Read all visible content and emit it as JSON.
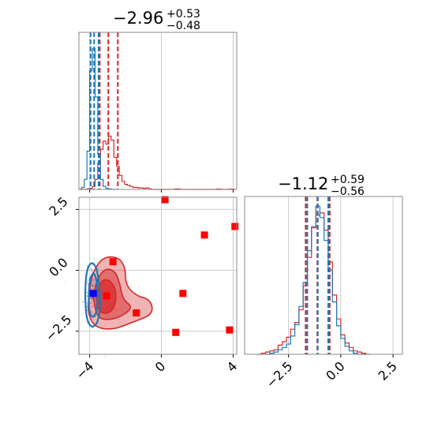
{
  "colors": {
    "series_a": "#d62728",
    "series_b": "#1f77b4",
    "grid": "#cccccc",
    "marker_red": "#ff0000",
    "marker_blue": "#0000ff"
  },
  "chart_data": [
    {
      "panel": "param1-marginal",
      "type": "histogram",
      "title": {
        "value": "−2.96",
        "upper": "+0.53",
        "lower": "−0.48"
      },
      "xlim": [
        -4.6,
        4.2
      ],
      "grid": true,
      "series": [
        {
          "color": "#d62728",
          "bins_x": [
            -4.6,
            -4.45,
            -4.3,
            -4.15,
            -4.0,
            -3.85,
            -3.7,
            -3.55,
            -3.4,
            -3.25,
            -3.1,
            -2.95,
            -2.8,
            -2.65,
            -2.5,
            -2.35,
            -2.2,
            -2.05,
            -1.9,
            -1.75,
            -1.6,
            -1.45,
            -1.3,
            -1.15,
            -1.0,
            -0.85,
            -0.7,
            -0.55,
            -0.4,
            -0.25,
            -0.1,
            0.05,
            0.2,
            0.35,
            0.5,
            0.65,
            0.8,
            0.95,
            1.1,
            1.25,
            1.4,
            1.55,
            1.7,
            1.85,
            2.0,
            2.15,
            2.3,
            2.45,
            2.6,
            2.75,
            2.9,
            3.05,
            3.2,
            3.35,
            3.5,
            3.65,
            3.8,
            3.95,
            4.1
          ],
          "counts": [
            0,
            0,
            0,
            0.5,
            1,
            3,
            10,
            26,
            40,
            48,
            45,
            53,
            49,
            32,
            23,
            14,
            8,
            5,
            4,
            3,
            2,
            2,
            1.5,
            1.5,
            1,
            1.5,
            0.5,
            0,
            0,
            0,
            0,
            0,
            0,
            0,
            0,
            0,
            0,
            0,
            0,
            0,
            0,
            0,
            0,
            0,
            0,
            0,
            0,
            0,
            0,
            0,
            0,
            0,
            0,
            0,
            0,
            0,
            0,
            0,
            0
          ],
          "quantiles": [
            -3.44,
            -2.96,
            -2.43
          ],
          "small_values": [
            [
              0.9,
              0.5
            ],
            [
              3.2,
              0.4
            ],
            [
              3.9,
              0.3
            ]
          ]
        },
        {
          "color": "#1f77b4",
          "bins_x": [
            -4.6,
            -4.45,
            -4.3,
            -4.15,
            -4.0,
            -3.85,
            -3.7,
            -3.55,
            -3.4,
            -3.25,
            -3.1,
            -2.95,
            -2.8,
            -2.65,
            -2.5
          ],
          "counts": [
            0,
            2,
            10,
            38,
            118,
            140,
            92,
            35,
            10,
            3,
            1,
            0.5,
            0,
            0
          ],
          "quantiles": [
            -3.95,
            -3.75,
            -3.5
          ]
        }
      ]
    },
    {
      "panel": "param2-marginal",
      "type": "histogram",
      "title": {
        "value": "−1.12",
        "upper": "+0.59",
        "lower": "−0.56"
      },
      "xlim": [
        -4.6,
        2.95
      ],
      "x_ticks": [
        "−2.5",
        "0.0",
        "2.5"
      ],
      "x_tick_values": [
        -2.5,
        0,
        2.5
      ],
      "grid": true,
      "series": [
        {
          "color": "#d62728",
          "edges_x": [
            -4.0,
            -3.8,
            -3.6,
            -3.4,
            -3.2,
            -3.0,
            -2.8,
            -2.6,
            -2.4,
            -2.2,
            -2.0,
            -1.8,
            -1.6,
            -1.4,
            -1.2,
            -1.0,
            -0.8,
            -0.6,
            -0.4,
            -0.2,
            0.0,
            0.2,
            0.4,
            0.6,
            0.8,
            1.0,
            1.2,
            1.4
          ],
          "counts": [
            0,
            1,
            2,
            3,
            4,
            8,
            11,
            15,
            22,
            28,
            39,
            60,
            85,
            111,
            122,
            124,
            109,
            81,
            52,
            31,
            17,
            10,
            6,
            3,
            2,
            1,
            0
          ],
          "quantiles": [
            -1.68,
            -1.12,
            -0.53
          ]
        },
        {
          "color": "#1f77b4",
          "edges_x": [
            -3.6,
            -3.4,
            -3.2,
            -3.0,
            -2.8,
            -2.6,
            -2.4,
            -2.2,
            -2.0,
            -1.8,
            -1.6,
            -1.4,
            -1.2,
            -1.0,
            -0.8,
            -0.6,
            -0.4,
            -0.2,
            0.0,
            0.2,
            0.4,
            0.6,
            0.8,
            1.0,
            1.2
          ],
          "counts": [
            0,
            1,
            2,
            4,
            6,
            9,
            16,
            26,
            42,
            63,
            91,
            112,
            130,
            120,
            100,
            74,
            46,
            25,
            14,
            7,
            3,
            1,
            0,
            0
          ],
          "quantiles": [
            -1.6,
            -1.1,
            -0.6
          ]
        }
      ]
    },
    {
      "panel": "joint",
      "type": "scatter",
      "xlim": [
        -4.6,
        4.2
      ],
      "ylim": [
        -3.45,
        3.0
      ],
      "x_ticks": [
        "−4",
        "0",
        "4"
      ],
      "x_tick_values": [
        -4,
        0,
        4
      ],
      "y_ticks": [
        "2.5",
        "0.0",
        "−2.5"
      ],
      "y_tick_values": [
        2.5,
        0.0,
        -2.5
      ],
      "grid": true,
      "red_markers": [
        [
          0.2,
          2.9
        ],
        [
          -2.7,
          0.35
        ],
        [
          2.4,
          1.45
        ],
        [
          4.1,
          1.8
        ],
        [
          -3.05,
          -1.05
        ],
        [
          1.2,
          -0.95
        ],
        [
          -1.4,
          -1.75
        ],
        [
          0.8,
          -2.55
        ],
        [
          3.8,
          -2.45
        ]
      ],
      "blue_markers": [
        [
          -3.8,
          -0.95
        ]
      ],
      "red_contour_levels": [
        {
          "opacity": 0.35,
          "pts": [
            [
              -4.05,
              -1.1
            ],
            [
              -3.9,
              -0.2
            ],
            [
              -3.3,
              0.55
            ],
            [
              -2.4,
              0.55
            ],
            [
              -2.0,
              0.1
            ],
            [
              -2.0,
              -0.6
            ],
            [
              -1.4,
              -1.05
            ],
            [
              -0.6,
              -1.2
            ],
            [
              -0.45,
              -1.8
            ],
            [
              -1.5,
              -2.1
            ],
            [
              -2.7,
              -2.45
            ],
            [
              -3.7,
              -2.35
            ],
            [
              -4.1,
              -1.8
            ]
          ]
        },
        {
          "opacity": 0.5,
          "pts": [
            [
              -3.8,
              -1.1
            ],
            [
              -3.6,
              -0.35
            ],
            [
              -3.1,
              0.1
            ],
            [
              -2.55,
              -0.05
            ],
            [
              -2.3,
              -0.6
            ],
            [
              -2.15,
              -1.2
            ],
            [
              -1.6,
              -1.5
            ],
            [
              -2.1,
              -1.85
            ],
            [
              -2.9,
              -2.05
            ],
            [
              -3.6,
              -1.95
            ]
          ]
        },
        {
          "opacity": 0.7,
          "pts": [
            [
              -3.6,
              -1.1
            ],
            [
              -3.4,
              -0.45
            ],
            [
              -3.0,
              -0.35
            ],
            [
              -2.6,
              -0.65
            ],
            [
              -2.5,
              -1.2
            ],
            [
              -2.75,
              -1.7
            ],
            [
              -3.3,
              -1.8
            ],
            [
              -3.6,
              -1.5
            ]
          ]
        }
      ],
      "blue_contour_levels": [
        {
          "pts": [
            [
              -4.25,
              -1.0
            ],
            [
              -4.2,
              -0.1
            ],
            [
              -3.95,
              0.35
            ],
            [
              -3.65,
              0.2
            ],
            [
              -3.45,
              -0.6
            ],
            [
              -3.4,
              -1.6
            ],
            [
              -3.6,
              -2.25
            ],
            [
              -3.95,
              -2.35
            ],
            [
              -4.2,
              -1.9
            ]
          ]
        },
        {
          "pts": [
            [
              -4.05,
              -1.0
            ],
            [
              -4.0,
              -0.4
            ],
            [
              -3.8,
              -0.05
            ],
            [
              -3.6,
              -0.4
            ],
            [
              -3.55,
              -1.2
            ],
            [
              -3.65,
              -1.85
            ],
            [
              -3.9,
              -1.95
            ],
            [
              -4.05,
              -1.6
            ]
          ]
        }
      ]
    }
  ]
}
